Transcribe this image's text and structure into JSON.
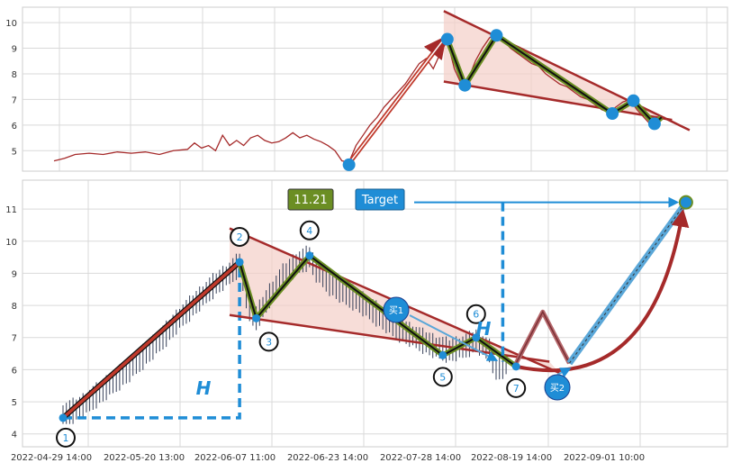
{
  "colors": {
    "price_line": "#a52a2a",
    "trend_line": "#a52a2a",
    "wedge_fill": "#f4cfc8",
    "zigzag_outer": "#6b8e23",
    "zigzag_inner": "#101010",
    "pivot": "#1f8dd6",
    "h_line": "#1f8dd6",
    "target_box": "#1f8dd6",
    "value_box": "#6b8e23",
    "candle": "#37415a",
    "grid": "#d9d9d9"
  },
  "labels": {
    "target_value": "11.21",
    "target": "Target",
    "h_left": "H",
    "h_right": "H",
    "buy1": "买1",
    "buy2": "买2"
  },
  "chart_data": [
    {
      "type": "line",
      "panel": "top",
      "y_ticks": [
        5,
        6,
        7,
        8,
        9,
        10
      ],
      "ylim": [
        4.2,
        10.6
      ],
      "grid": true,
      "series": [
        {
          "values": [
            [
              0,
              4.6
            ],
            [
              3,
              4.7
            ],
            [
              6,
              4.85
            ],
            [
              10,
              4.9
            ],
            [
              14,
              4.85
            ],
            [
              18,
              4.95
            ],
            [
              22,
              4.9
            ],
            [
              26,
              4.95
            ],
            [
              30,
              4.85
            ],
            [
              34,
              5.0
            ],
            [
              38,
              5.05
            ],
            [
              40,
              5.3
            ],
            [
              42,
              5.1
            ],
            [
              44,
              5.2
            ],
            [
              46,
              5.0
            ],
            [
              48,
              5.6
            ],
            [
              50,
              5.2
            ],
            [
              52,
              5.4
            ],
            [
              54,
              5.2
            ],
            [
              56,
              5.5
            ],
            [
              58,
              5.6
            ],
            [
              60,
              5.4
            ],
            [
              62,
              5.3
            ],
            [
              64,
              5.35
            ],
            [
              66,
              5.5
            ],
            [
              68,
              5.7
            ],
            [
              70,
              5.5
            ],
            [
              72,
              5.6
            ],
            [
              74,
              5.45
            ],
            [
              76,
              5.35
            ],
            [
              78,
              5.2
            ],
            [
              80,
              5.0
            ],
            [
              82,
              4.6
            ],
            [
              84,
              4.55
            ],
            [
              86,
              5.2
            ],
            [
              88,
              5.6
            ],
            [
              90,
              6.0
            ],
            [
              92,
              6.3
            ],
            [
              94,
              6.7
            ],
            [
              96,
              7.0
            ],
            [
              98,
              7.3
            ],
            [
              100,
              7.6
            ],
            [
              102,
              8.0
            ],
            [
              104,
              8.4
            ],
            [
              106,
              8.6
            ],
            [
              108,
              8.2
            ],
            [
              110,
              8.8
            ],
            [
              112,
              9.3
            ],
            [
              114,
              8.2
            ],
            [
              116,
              7.6
            ],
            [
              118,
              7.8
            ],
            [
              120,
              8.5
            ],
            [
              122,
              9.0
            ],
            [
              124,
              9.4
            ],
            [
              126,
              9.6
            ],
            [
              128,
              9.3
            ],
            [
              130,
              9.0
            ],
            [
              132,
              8.8
            ],
            [
              134,
              8.6
            ],
            [
              136,
              8.4
            ],
            [
              138,
              8.3
            ],
            [
              140,
              8.0
            ],
            [
              142,
              7.8
            ],
            [
              144,
              7.6
            ],
            [
              146,
              7.5
            ],
            [
              148,
              7.3
            ],
            [
              150,
              7.1
            ],
            [
              152,
              7.0
            ],
            [
              154,
              6.8
            ],
            [
              156,
              6.6
            ],
            [
              158,
              6.5
            ],
            [
              160,
              6.7
            ],
            [
              162,
              6.9
            ],
            [
              164,
              7.0
            ],
            [
              166,
              6.6
            ],
            [
              168,
              6.3
            ],
            [
              170,
              6.0
            ],
            [
              172,
              6.3
            ],
            [
              174,
              6.3
            ]
          ]
        }
      ],
      "pivots": [
        [
          84,
          4.45
        ],
        [
          112,
          9.35
        ],
        [
          117,
          7.55
        ],
        [
          126,
          9.5
        ],
        [
          159,
          6.45
        ],
        [
          165,
          6.95
        ],
        [
          171,
          6.05
        ]
      ],
      "zigzag": [
        [
          112,
          9.35
        ],
        [
          117,
          7.55
        ],
        [
          126,
          9.5
        ],
        [
          159,
          6.45
        ],
        [
          165,
          6.95
        ],
        [
          171,
          6.05
        ],
        [
          173,
          6.3
        ]
      ],
      "upper_trendline": [
        [
          111,
          10.45
        ],
        [
          181,
          5.8
        ]
      ],
      "lower_trendline": [
        [
          111,
          7.7
        ],
        [
          176,
          6.2
        ]
      ],
      "impulse_arrow": [
        [
          84,
          4.5
        ],
        [
          111,
          9.35
        ]
      ]
    },
    {
      "type": "line",
      "panel": "bottom",
      "x_tick_labels": [
        "2022-04-29 14:00",
        "2022-05-20 13:00",
        "2022-06-07 11:00",
        "2022-06-23 14:00",
        "2022-07-28 14:00",
        "2022-08-19 14:00",
        "2022-09-01 10:00"
      ],
      "y_ticks": [
        4,
        5,
        6,
        7,
        8,
        9,
        10,
        11
      ],
      "ylim": [
        3.6,
        11.9
      ],
      "grid": true,
      "series": [
        {
          "values": [
            [
              0,
              4.6
            ],
            [
              5,
              4.8
            ],
            [
              10,
              5.2
            ],
            [
              15,
              5.6
            ],
            [
              20,
              6.0
            ],
            [
              25,
              6.5
            ],
            [
              30,
              7.0
            ],
            [
              35,
              7.6
            ],
            [
              40,
              8.1
            ],
            [
              45,
              8.6
            ],
            [
              50,
              9.0
            ],
            [
              53,
              9.3
            ],
            [
              56,
              7.8
            ],
            [
              58,
              7.6
            ],
            [
              62,
              8.3
            ],
            [
              66,
              8.9
            ],
            [
              70,
              9.3
            ],
            [
              74,
              9.5
            ],
            [
              76,
              9.1
            ],
            [
              80,
              8.7
            ],
            [
              84,
              8.4
            ],
            [
              88,
              8.2
            ],
            [
              92,
              7.9
            ],
            [
              96,
              7.6
            ],
            [
              100,
              7.3
            ],
            [
              104,
              7.1
            ],
            [
              108,
              6.9
            ],
            [
              112,
              6.7
            ],
            [
              116,
              6.6
            ],
            [
              120,
              6.7
            ],
            [
              124,
              6.9
            ],
            [
              128,
              6.6
            ],
            [
              130,
              6.0
            ],
            [
              134,
              6.2
            ]
          ]
        }
      ],
      "pivot_labels": [
        "1",
        "2",
        "3",
        "4",
        "5",
        "6",
        "7"
      ],
      "pivots": [
        [
          0,
          4.5
        ],
        [
          53,
          9.35
        ],
        [
          58,
          7.6
        ],
        [
          74,
          9.55
        ],
        [
          114,
          6.45
        ],
        [
          124,
          7.0
        ],
        [
          136,
          6.1
        ]
      ],
      "upper_trendline": [
        [
          50,
          10.4
        ],
        [
          149,
          5.9
        ]
      ],
      "lower_trendline": [
        [
          50,
          7.7
        ],
        [
          146,
          6.25
        ]
      ],
      "target_price": 11.21,
      "projection": [
        [
          136,
          6.2
        ],
        [
          144,
          7.8
        ],
        [
          152,
          6.2
        ],
        [
          187,
          11.21
        ]
      ],
      "buy_points": [
        [
          108,
          7.75
        ],
        [
          153,
          5.25
        ]
      ]
    }
  ]
}
